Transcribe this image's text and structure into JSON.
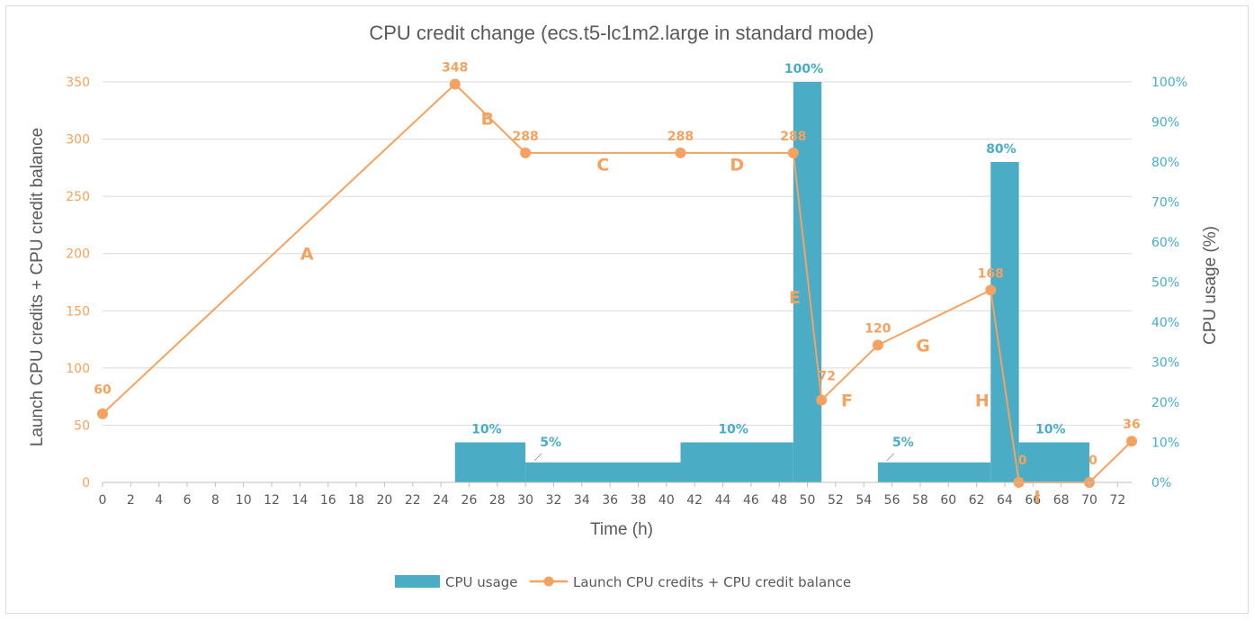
{
  "chart_data": {
    "type": "bar+line",
    "title": "CPU credit change (ecs.t5-lc1m2.large in standard mode)",
    "xlabel": "Time (h)",
    "ylabel_left": "Launch CPU credits + CPU credit balance",
    "ylabel_right": "CPU usage (%)",
    "x_ticks": [
      "0",
      "2",
      "4",
      "6",
      "8",
      "10",
      "12",
      "14",
      "16",
      "18",
      "20",
      "22",
      "24",
      "26",
      "28",
      "30",
      "32",
      "34",
      "36",
      "38",
      "40",
      "42",
      "44",
      "46",
      "48",
      "50",
      "52",
      "54",
      "56",
      "58",
      "60",
      "62",
      "64",
      "66",
      "68",
      "70",
      "72"
    ],
    "xlim": [
      0,
      73
    ],
    "ylim_left": [
      0,
      350
    ],
    "y_ticks_left": [
      "0",
      "50",
      "100",
      "150",
      "200",
      "250",
      "300",
      "350"
    ],
    "ylim_right": [
      0,
      100
    ],
    "y_ticks_right": [
      "0%",
      "10%",
      "20%",
      "30%",
      "40%",
      "50%",
      "60%",
      "70%",
      "80%",
      "90%",
      "100%"
    ],
    "grid": "horizontal",
    "legend_position": "bottom",
    "colors": {
      "bar": "#4bacc6",
      "line": "#f4a261",
      "grid": "#d9d9d9",
      "text": "#595959"
    },
    "bars": [
      {
        "x_start": 25,
        "x_end": 30,
        "value": 10,
        "label": "10%"
      },
      {
        "x_start": 30,
        "x_end": 41,
        "value": 5,
        "label": "5%"
      },
      {
        "x_start": 41,
        "x_end": 49,
        "value": 10,
        "label": "10%"
      },
      {
        "x_start": 49,
        "x_end": 51,
        "value": 100,
        "label": "100%"
      },
      {
        "x_start": 55,
        "x_end": 63,
        "value": 5,
        "label": "5%"
      },
      {
        "x_start": 63,
        "x_end": 65,
        "value": 80,
        "label": "80%"
      },
      {
        "x_start": 65,
        "x_end": 70,
        "value": 10,
        "label": "10%"
      }
    ],
    "series": [
      {
        "name": "Launch CPU credits + CPU credit balance",
        "points": [
          {
            "x": 0,
            "y": 60,
            "label": "60"
          },
          {
            "x": 25,
            "y": 348,
            "label": "348"
          },
          {
            "x": 30,
            "y": 288,
            "label": "288"
          },
          {
            "x": 41,
            "y": 288,
            "label": "288"
          },
          {
            "x": 49,
            "y": 288,
            "label": "288"
          },
          {
            "x": 51,
            "y": 72,
            "label": "72"
          },
          {
            "x": 55,
            "y": 120,
            "label": "120"
          },
          {
            "x": 63,
            "y": 168,
            "label": "168"
          },
          {
            "x": 65,
            "y": 0,
            "label": "0"
          },
          {
            "x": 70,
            "y": 0,
            "label": "0"
          },
          {
            "x": 73,
            "y": 36,
            "label": "36"
          }
        ]
      }
    ],
    "segment_labels": [
      {
        "text": "A",
        "x": 14.5,
        "y": 200
      },
      {
        "text": "B",
        "x": 27.3,
        "y": 318
      },
      {
        "text": "C",
        "x": 35.5,
        "y": 278
      },
      {
        "text": "D",
        "x": 45,
        "y": 278
      },
      {
        "text": "E",
        "x": 49.1,
        "y": 162
      },
      {
        "text": "F",
        "x": 52.8,
        "y": 72
      },
      {
        "text": "G",
        "x": 58.2,
        "y": 120
      },
      {
        "text": "H",
        "x": 62.4,
        "y": 72
      },
      {
        "text": "I",
        "x": 66.3,
        "y": -12
      }
    ],
    "legend": [
      {
        "kind": "bar",
        "label": "CPU usage"
      },
      {
        "kind": "line",
        "label": "Launch CPU credits + CPU credit balance"
      }
    ]
  }
}
